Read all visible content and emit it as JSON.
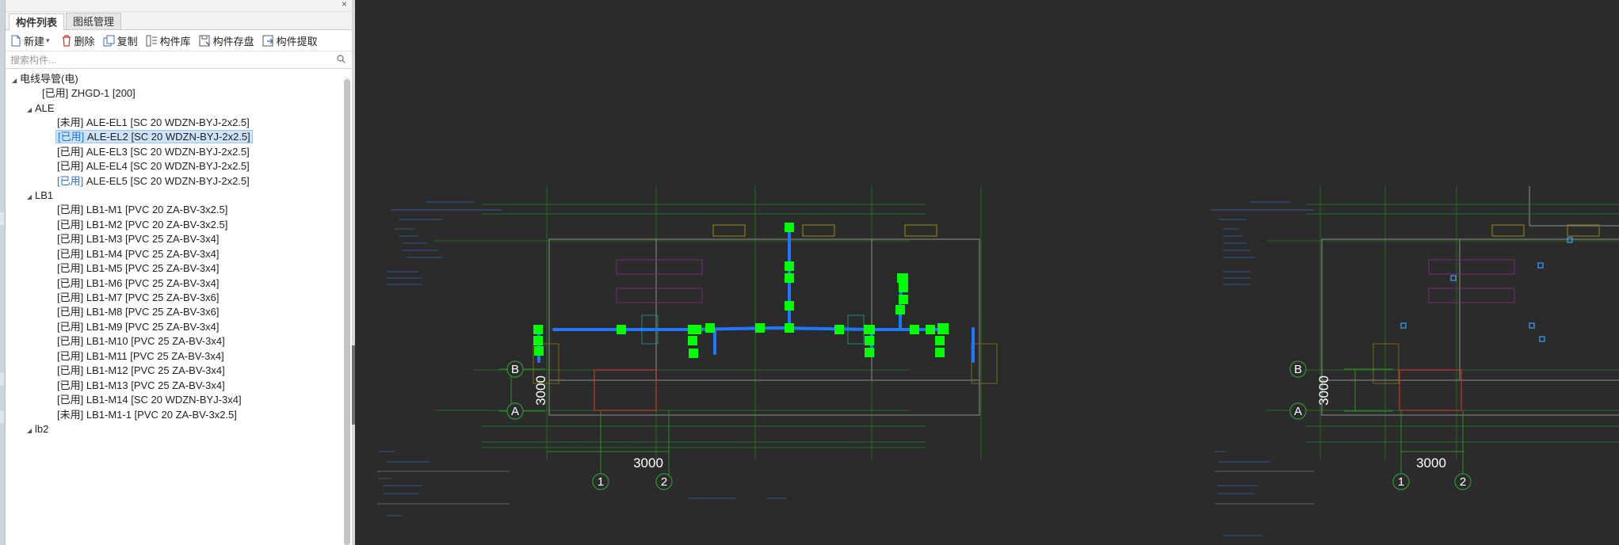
{
  "tabs": [
    {
      "label": "构件列表",
      "active": true
    },
    {
      "label": "图纸管理",
      "active": false
    }
  ],
  "toolbar": {
    "new": "新建",
    "delete": "删除",
    "copy": "复制",
    "library": "构件库",
    "save": "构件存盘",
    "extract": "构件提取"
  },
  "search": {
    "placeholder": "搜索构件..."
  },
  "tree": {
    "root": "电线导管(电)",
    "zhgd": {
      "status": "[已用]",
      "name": "ZHGD-1 [200]"
    },
    "ale": {
      "label": "ALE",
      "items": [
        {
          "status": "[未用]",
          "name": "ALE-EL1 [SC 20 WDZN-BYJ-2x2.5]"
        },
        {
          "status": "[已用]",
          "name": "ALE-EL2 [SC 20 WDZN-BYJ-2x2.5]"
        },
        {
          "status": "[已用]",
          "name": "ALE-EL3 [SC 20 WDZN-BYJ-2x2.5]"
        },
        {
          "status": "[已用]",
          "name": "ALE-EL4 [SC 20 WDZN-BYJ-2x2.5]"
        },
        {
          "status": "[已用]",
          "name": "ALE-EL5 [SC 20 WDZN-BYJ-2x2.5]"
        }
      ]
    },
    "lb1": {
      "label": "LB1",
      "items": [
        {
          "status": "[已用]",
          "name": "LB1-M1 [PVC 20 ZA-BV-3x2.5]"
        },
        {
          "status": "[已用]",
          "name": "LB1-M2 [PVC 20 ZA-BV-3x2.5]"
        },
        {
          "status": "[已用]",
          "name": "LB1-M3 [PVC 25 ZA-BV-3x4]"
        },
        {
          "status": "[已用]",
          "name": "LB1-M4 [PVC 25 ZA-BV-3x4]"
        },
        {
          "status": "[已用]",
          "name": "LB1-M5 [PVC 25 ZA-BV-3x4]"
        },
        {
          "status": "[已用]",
          "name": "LB1-M6 [PVC 25 ZA-BV-3x4]"
        },
        {
          "status": "[已用]",
          "name": "LB1-M7 [PVC 25 ZA-BV-3x6]"
        },
        {
          "status": "[已用]",
          "name": "LB1-M8 [PVC 25 ZA-BV-3x6]"
        },
        {
          "status": "[已用]",
          "name": "LB1-M9 [PVC 25 ZA-BV-3x4]"
        },
        {
          "status": "[已用]",
          "name": "LB1-M10 [PVC 25 ZA-BV-3x4]"
        },
        {
          "status": "[已用]",
          "name": "LB1-M11 [PVC 25 ZA-BV-3x4]"
        },
        {
          "status": "[已用]",
          "name": "LB1-M12 [PVC 25 ZA-BV-3x4]"
        },
        {
          "status": "[已用]",
          "name": "LB1-M13 [PVC 25 ZA-BV-3x4]"
        },
        {
          "status": "[已用]",
          "name": "LB1-M14 [SC 20 WDZN-BYJ-3x4]"
        },
        {
          "status": "[未用]",
          "name": "LB1-M1-1 [PVC 20 ZA-BV-3x2.5]"
        }
      ]
    },
    "lb2": "lb2"
  },
  "canvas": {
    "plan1": {
      "axis_b": "B",
      "axis_a": "A",
      "dim_vertical": "3000",
      "dim_horizontal": "3000",
      "axis_1": "1",
      "axis_2": "2"
    },
    "plan2": {
      "axis_b": "B",
      "axis_a": "A",
      "dim_vertical": "3000",
      "dim_horizontal": "3000",
      "axis_1": "1",
      "axis_2": "2"
    }
  },
  "colors": {
    "conduit": "#1f78ff",
    "grip": "#00ff00",
    "canvas_bg": "#2b2b2b",
    "drawing_green": "#1f6e1f",
    "selected_status": "#1e6fd8"
  }
}
